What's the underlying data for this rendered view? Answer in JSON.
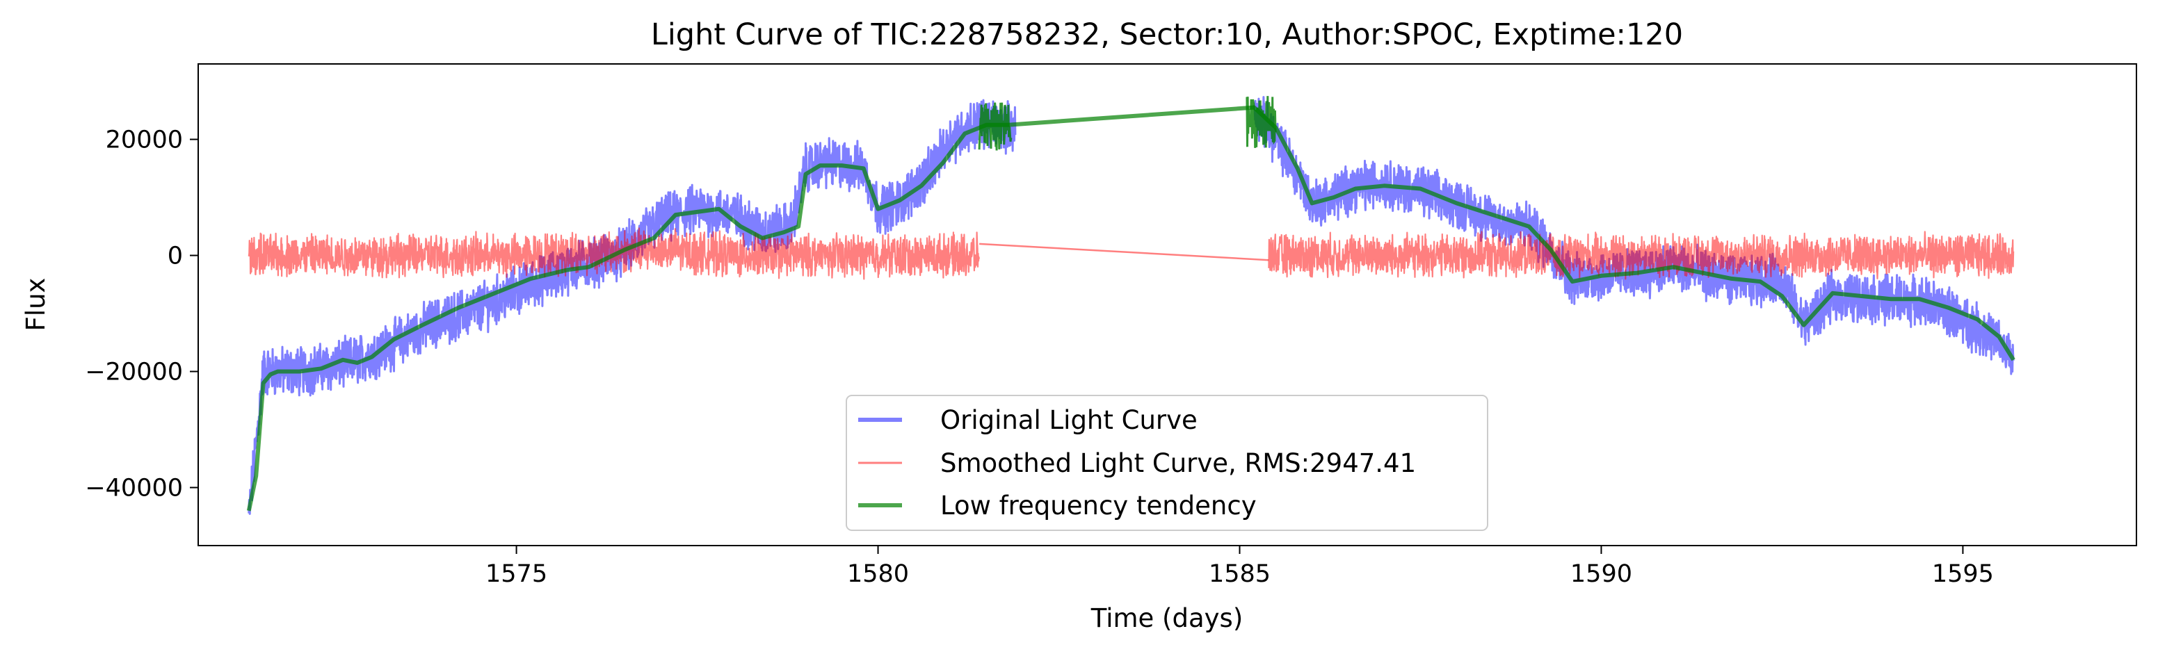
{
  "chart_data": {
    "type": "line",
    "title": "Light Curve of TIC:228758232, Sector:10, Author:SPOC, Exptime:120",
    "xlabel": "Time (days)",
    "ylabel": "Flux",
    "xlim": [
      1570.6,
      1597.4
    ],
    "ylim": [
      -50000,
      33000
    ],
    "xticks": [
      1575,
      1580,
      1585,
      1590,
      1595
    ],
    "yticks": [
      -40000,
      -20000,
      0,
      20000
    ],
    "ytick_labels": [
      "−40000",
      "−20000",
      "0",
      "20000"
    ],
    "grid": false,
    "legend_position": "bottom-center",
    "series": [
      {
        "name": "Original Light Curve",
        "color": "#0000ff",
        "opacity": 0.5,
        "noise_amplitude": 3500,
        "x": [
          1571.3,
          1571.5,
          1571.7,
          1572.0,
          1572.5,
          1572.8,
          1573.2,
          1573.8,
          1574.5,
          1575.2,
          1575.8,
          1576.4,
          1577.0,
          1577.5,
          1578.0,
          1578.4,
          1578.8,
          1579.0,
          1579.3,
          1579.8,
          1580.0,
          1580.3,
          1580.7,
          1581.0,
          1581.4,
          1581.9,
          1585.2,
          1585.5,
          1585.8,
          1586.0,
          1586.3,
          1586.6,
          1587.0,
          1587.5,
          1588.0,
          1588.5,
          1589.0,
          1589.3,
          1589.6,
          1590.0,
          1590.5,
          1591.0,
          1591.5,
          1592.0,
          1592.5,
          1592.8,
          1593.2,
          1593.6,
          1594.0,
          1594.5,
          1595.0,
          1595.4,
          1595.7
        ],
        "y": [
          -45000,
          -20000,
          -20000,
          -20000,
          -19000,
          -18000,
          -16000,
          -12000,
          -9000,
          -5000,
          -2000,
          0,
          6000,
          8000,
          7000,
          4000,
          5000,
          15000,
          16000,
          15000,
          8000,
          9000,
          14000,
          20000,
          23000,
          22000,
          25000,
          20000,
          14000,
          9000,
          10000,
          12000,
          12500,
          11000,
          9000,
          6000,
          5000,
          1000,
          -4000,
          -3500,
          -3000,
          -2000,
          -3500,
          -4500,
          -4000,
          -12000,
          -7000,
          -7500,
          -7500,
          -8000,
          -11000,
          -14000,
          -18000
        ]
      },
      {
        "name": "Smoothed Light Curve, RMS:2947.41",
        "color": "#ff0000",
        "opacity": 0.5,
        "noise_amplitude": 2947.41,
        "x": [
          1571.3,
          1572.0,
          1573.0,
          1574.0,
          1575.0,
          1576.0,
          1577.0,
          1578.0,
          1579.0,
          1580.0,
          1581.0,
          1581.4,
          1585.4,
          1586.0,
          1587.0,
          1588.0,
          1589.0,
          1590.0,
          1591.0,
          1592.0,
          1593.0,
          1594.0,
          1595.0,
          1595.7
        ],
        "y": [
          0,
          0,
          0,
          0,
          0,
          500,
          1000,
          0,
          0,
          0,
          0,
          0,
          0,
          0,
          0,
          0,
          0,
          0,
          0,
          0,
          0,
          0,
          0,
          0
        ]
      },
      {
        "name": "Low frequency tendency",
        "color": "#008000",
        "opacity": 0.7,
        "x": [
          1571.3,
          1571.4,
          1571.5,
          1571.6,
          1571.7,
          1572.0,
          1572.3,
          1572.6,
          1572.8,
          1573.0,
          1573.3,
          1573.7,
          1574.2,
          1574.7,
          1575.2,
          1575.7,
          1576.0,
          1576.5,
          1576.9,
          1577.2,
          1577.5,
          1577.8,
          1578.1,
          1578.4,
          1578.7,
          1578.9,
          1579.0,
          1579.2,
          1579.5,
          1579.8,
          1580.0,
          1580.3,
          1580.6,
          1580.9,
          1581.2,
          1581.5,
          1581.8,
          1585.2,
          1585.5,
          1585.8,
          1586.0,
          1586.3,
          1586.6,
          1587.0,
          1587.5,
          1588.0,
          1588.5,
          1589.0,
          1589.3,
          1589.6,
          1590.0,
          1590.5,
          1591.0,
          1591.4,
          1591.8,
          1592.2,
          1592.5,
          1592.8,
          1593.2,
          1593.6,
          1594.0,
          1594.4,
          1594.8,
          1595.2,
          1595.5,
          1595.7
        ],
        "y": [
          -44000,
          -38000,
          -22000,
          -20500,
          -20000,
          -20000,
          -19500,
          -18000,
          -18500,
          -17500,
          -14500,
          -12000,
          -9000,
          -6500,
          -4000,
          -2500,
          -2000,
          1000,
          3000,
          7000,
          7500,
          8000,
          5000,
          3000,
          4000,
          5000,
          14000,
          15500,
          15500,
          15000,
          8000,
          9500,
          12000,
          16000,
          21000,
          22500,
          22500,
          25500,
          22000,
          15000,
          9000,
          10000,
          11500,
          12000,
          11500,
          9000,
          7000,
          5000,
          1000,
          -4500,
          -3500,
          -3000,
          -2000,
          -3000,
          -4000,
          -4500,
          -7000,
          -12000,
          -6500,
          -7000,
          -7500,
          -7500,
          -9000,
          -11000,
          -14000,
          -18000
        ]
      }
    ]
  }
}
